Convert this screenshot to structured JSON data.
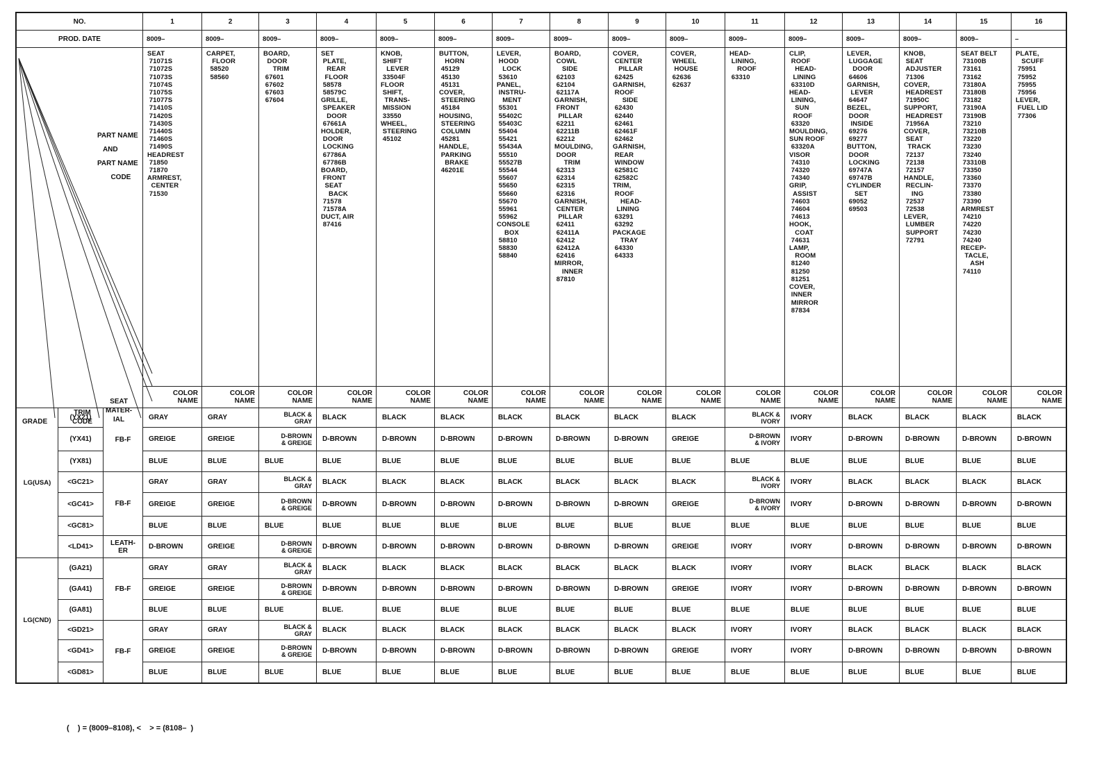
{
  "header": {
    "no_label": "NO.",
    "prod_date_label": "PROD. DATE",
    "part_name_label": "PART NAME\n   AND\nPART NAME\n       CODE",
    "grade_label": "GRADE",
    "trim_code_label": "TRIM\nCODE",
    "seat_material_label": "SEAT\nMATER-\nIAL",
    "color_name_label": "COLOR\nNAME"
  },
  "columns": [
    {
      "no": "1",
      "prod_date": "8009–",
      "parts": "SEAT\n 71071S\n 71072S\n 71073S\n 71074S\n 71075S\n 71077S\n 71410S\n 71420S\n 71430S\n 71440S\n 71460S\n 71490S\nHEADREST\n 71850\n 71870\nARMREST,\n  CENTER\n 71530"
    },
    {
      "no": "2",
      "prod_date": "8009–",
      "parts": "CARPET,\n   FLOOR\n  58520\n  58560"
    },
    {
      "no": "3",
      "prod_date": "8009–",
      "parts": "BOARD,\n  DOOR\n     TRIM\n 67601\n 67602\n 67603\n 67604"
    },
    {
      "no": "4",
      "prod_date": "8009–",
      "parts": "SET\n PLATE,\n   REAR\n  FLOOR\n 58578\n 58579C\nGRILLE,\n SPEAKER\n   DOOR\n 67661A\nHOLDER,\n DOOR\n LOCKING\n 67786A\n 67786B\nBOARD,\n FRONT\n  SEAT\n    BACK\n 71578\n 71578A\nDUCT, AIR\n 87416"
    },
    {
      "no": "5",
      "prod_date": "8009–",
      "parts": "KNOB,\n SHIFT\n   LEVER\n 33504F\nFLOOR\n SHIFT,\n  TRANS-\n MISSION\n 33550\nWHEEL,\n STEERING\n 45102"
    },
    {
      "no": "6",
      "prod_date": "8009–",
      "parts": "BUTTON,\n   HORN\n 45129\n 45130\n 45131\nCOVER,\n STEERING\n 45184\nHOUSING,\n STEERING\n COLUMN\n 45281\nHANDLE,\n PARKING\n   BRAKE\n 46201E"
    },
    {
      "no": "7",
      "prod_date": "8009–",
      "parts": "LEVER,\n HOOD\n   LOCK\n 53610\nPANEL,\n INSTRU-\n   MENT\n 55301\n 55402C\n 55403C\n 55404\n 55421\n 55434A\n 55510\n 55527B\n 55544\n 55607\n 55650\n 55660\n 55670\n 55961\n 55962\nCONSOLE\n    BOX\n 58810\n 58830\n 58840"
    },
    {
      "no": "8",
      "prod_date": "8009–",
      "parts": "BOARD,\n COWL\n    SIDE\n 62103\n 62104\n 62117A\nGARNISH,\n FRONT\n  PILLAR\n 62211\n 62211B\n 62212\nMOULDING,\n DOOR\n     TRIM\n 62313\n 62314\n 62315\n 62316\nGARNISH,\n CENTER\n  PILLAR\n 62411\n 62411A\n 62412\n 62412A\n 62416\nMIRROR,\n    INNER\n 87810"
    },
    {
      "no": "9",
      "prod_date": "8009–",
      "parts": "COVER,\n CENTER\n   PILLAR\n 62425\nGARNISH,\n ROOF\n     SIDE\n 62430\n 62440\n 62461\n 62461F\n 62462\nGARNISH,\n REAR\n WINDOW\n 62581C\n 62582C\nTRIM,\n ROOF\n    HEAD-\n  LINING\n 63291\n 63292\nPACKAGE\n    TRAY\n 64330\n 64333"
    },
    {
      "no": "10",
      "prod_date": "8009–",
      "parts": "COVER,\n WHEEL\n  HOUSE\n 62636\n 62637"
    },
    {
      "no": "11",
      "prod_date": "8009–",
      "parts": "HEAD-\n LINING,\n    ROOF\n 63310"
    },
    {
      "no": "12",
      "prod_date": "8009–",
      "parts": "CLIP,\n ROOF\n   HEAD-\n  LINING\n 63310D\nHEAD-\n LINING,\n   SUN\n  ROOF\n 63320\nMOULDING,\nSUN ROOF\n 63320A\nVISOR\n 74310\n 74320\n 74340\nGRIP,\n  ASSIST\n 74603\n 74604\n 74613\nHOOK,\n   COAT\n 74631\nLAMP,\n   ROOM\n 81240\n 81250\n 81251\nCOVER,\n INNER\n MIRROR\n 87834"
    },
    {
      "no": "13",
      "prod_date": "8009–",
      "parts": "LEVER,\n LUGGAGE\n   DOOR\n 64606\nGARNISH,\n  LEVER\n 64647\nBEZEL,\n DOOR\n  INSIDE\n 69276\n 69277\nBUTTON,\n DOOR\n LOCKING\n 69747A\n 69747B\nCYLINDER\n    SET\n 69052\n 69503"
    },
    {
      "no": "14",
      "prod_date": "8009–",
      "parts": "KNOB,\n SEAT\n ADJUSTER\n 71306\nCOVER,\n HEADREST\n 71950C\nSUPPORT,\n HEADREST\n 71956A\nCOVER,\n SEAT\n  TRACK\n 72137\n 72138\n 72157\nHANDLE,\n RECLIN-\n    ING\n 72537\n 72538\nLEVER,\n LUMBER\n SUPPORT\n 72791"
    },
    {
      "no": "15",
      "prod_date": "8009–",
      "parts": "SEAT BELT\n 73100B\n 73161\n 73162\n 73180A\n 73180B\n 73182\n 73190A\n 73190B\n 73210\n 73210B\n 73220\n 73230\n 73240\n 73310B\n 73350\n 73360\n 73370\n 73380\n 73390\nARMREST\n 74210\n 74220\n 74230\n 74240\nRECEP-\n  TACLE,\n     ASH\n 74110"
    },
    {
      "no": "16",
      "prod_date": "–",
      "parts": "PLATE,\n   SCUFF\n 75951\n 75952\n 75955\n 75956\nLEVER,\n FUEL LID\n 77306"
    }
  ],
  "groups": [
    {
      "grade": "LG(USA)",
      "materials": [
        {
          "label": "FB-F",
          "rows": [
            {
              "trim": "(YX21)",
              "colors": [
                "GRAY",
                "GRAY",
                "BLACK &\nGRAY",
                "BLACK",
                "BLACK",
                "BLACK",
                "BLACK",
                "BLACK",
                "BLACK",
                "BLACK",
                "BLACK &\nIVORY",
                "IVORY",
                "BLACK",
                "BLACK",
                "BLACK",
                "BLACK"
              ]
            },
            {
              "trim": "(YX41)",
              "colors": [
                "GREIGE",
                "GREIGE",
                "D-BROWN\n& GREIGE",
                "D-BROWN",
                "D-BROWN",
                "D-BROWN",
                "D-BROWN",
                "D-BROWN",
                "D-BROWN",
                "GREIGE",
                "D-BROWN\n& IVORY",
                "IVORY",
                "D-BROWN",
                "D-BROWN",
                "D-BROWN",
                "D-BROWN"
              ]
            },
            {
              "trim": "(YX81)",
              "colors": [
                "BLUE",
                "BLUE",
                "BLUE",
                "BLUE",
                "BLUE",
                "BLUE",
                "BLUE",
                "BLUE",
                "BLUE",
                "BLUE",
                "BLUE",
                "BLUE",
                "BLUE",
                "BLUE",
                "BLUE",
                "BLUE"
              ]
            }
          ]
        },
        {
          "label": "FB-F",
          "rows": [
            {
              "trim": "<GC21>",
              "colors": [
                "GRAY",
                "GRAY",
                "BLACK &\nGRAY",
                "BLACK",
                "BLACK",
                "BLACK",
                "BLACK",
                "BLACK",
                "BLACK",
                "BLACK",
                "BLACK &\nIVORY",
                "IVORY",
                "BLACK",
                "BLACK",
                "BLACK",
                "BLACK"
              ]
            },
            {
              "trim": "<GC41>",
              "colors": [
                "GREIGE",
                "GREIGE",
                "D-BROWN\n& GREIGE",
                "D-BROWN",
                "D-BROWN",
                "D-BROWN",
                "D-BROWN",
                "D-BROWN",
                "D-BROWN",
                "GREIGE",
                "D-BROWN\n& IVORY",
                "IVORY",
                "D-BROWN",
                "D-BROWN",
                "D-BROWN",
                "D-BROWN"
              ]
            },
            {
              "trim": "<GC81>",
              "colors": [
                "BLUE",
                "BLUE",
                "BLUE",
                "BLUE",
                "BLUE",
                "BLUE",
                "BLUE",
                "BLUE",
                "BLUE",
                "BLUE",
                "BLUE",
                "BLUE",
                "BLUE",
                "BLUE",
                "BLUE",
                "BLUE"
              ]
            }
          ]
        },
        {
          "label": "LEATH-\nER",
          "rows": [
            {
              "trim": "<LD41>",
              "colors": [
                "D-BROWN",
                "GREIGE",
                "D-BROWN\n& GREIGE",
                "D-BROWN",
                "D-BROWN",
                "D-BROWN",
                "D-BROWN",
                "D-BROWN",
                "D-BROWN",
                "GREIGE",
                "IVORY",
                "IVORY",
                "D-BROWN",
                "D-BROWN",
                "D-BROWN",
                "D-BROWN"
              ]
            }
          ]
        }
      ]
    },
    {
      "grade": "LG(CND)",
      "materials": [
        {
          "label": "FB-F",
          "rows": [
            {
              "trim": "(GA21)",
              "colors": [
                "GRAY",
                "GRAY",
                "BLACK &\nGRAY",
                "BLACK",
                "BLACK",
                "BLACK",
                "BLACK",
                "BLACK",
                "BLACK",
                "BLACK",
                "IVORY",
                "IVORY",
                "BLACK",
                "BLACK",
                "BLACK",
                "BLACK"
              ]
            },
            {
              "trim": "(GA41)",
              "colors": [
                "GREIGE",
                "GREIGE",
                "D-BROWN\n& GREIGE",
                "D-BROWN",
                "D-BROWN",
                "D-BROWN",
                "D-BROWN",
                "D-BROWN",
                "D-BROWN",
                "GREIGE",
                "IVORY",
                "IVORY",
                "D-BROWN",
                "D-BROWN",
                "D-BROWN",
                "D-BROWN"
              ]
            },
            {
              "trim": "(GA81)",
              "colors": [
                "BLUE",
                "BLUE",
                "BLUE",
                "BLUE.",
                "BLUE",
                "BLUE",
                "BLUE",
                "BLUE",
                "BLUE",
                "BLUE",
                "BLUE",
                "BLUE",
                "BLUE",
                "BLUE",
                "BLUE",
                "BLUE"
              ]
            }
          ]
        },
        {
          "label": "FB-F",
          "rows": [
            {
              "trim": "<GD21>",
              "colors": [
                "GRAY",
                "GRAY",
                "BLACK &\nGRAY",
                "BLACK",
                "BLACK",
                "BLACK",
                "BLACK",
                "BLACK",
                "BLACK",
                "BLACK",
                "IVORY",
                "IVORY",
                "BLACK",
                "BLACK",
                "BLACK",
                "BLACK"
              ]
            },
            {
              "trim": "<GD41>",
              "colors": [
                "GREIGE",
                "GREIGE",
                "D-BROWN\n& GREIGE",
                "D-BROWN",
                "D-BROWN",
                "D-BROWN",
                "D-BROWN",
                "D-BROWN",
                "D-BROWN",
                "GREIGE",
                "IVORY",
                "IVORY",
                "D-BROWN",
                "D-BROWN",
                "D-BROWN",
                "D-BROWN"
              ]
            },
            {
              "trim": "<GD81>",
              "colors": [
                "BLUE",
                "BLUE",
                "BLUE",
                "BLUE",
                "BLUE",
                "BLUE",
                "BLUE",
                "BLUE",
                "BLUE",
                "BLUE",
                "BLUE",
                "BLUE",
                "BLUE",
                "BLUE",
                "BLUE",
                "BLUE"
              ]
            }
          ]
        }
      ]
    }
  ],
  "footnote": "(    ) = (8009–8108), <    > = (8108–  )"
}
